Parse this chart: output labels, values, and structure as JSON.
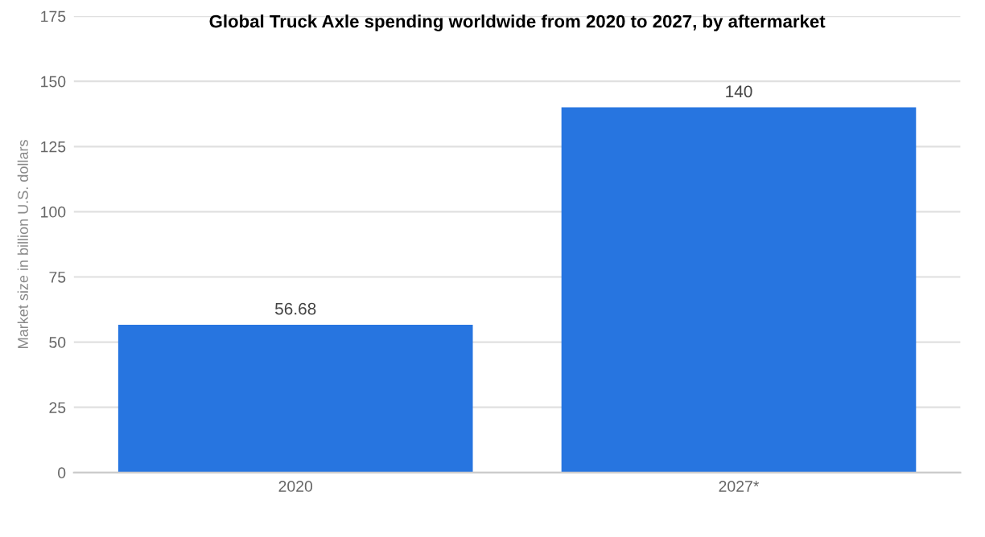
{
  "chart_data": {
    "type": "bar",
    "title": "Global Truck Axle spending worldwide from 2020 to 2027, by aftermarket",
    "ylabel": "Market size in billion U.S. dollars",
    "categories": [
      "2020",
      "2027*"
    ],
    "values": [
      56.68,
      140
    ],
    "color": "#2775e0",
    "ylim": [
      0,
      175
    ],
    "yticks": [
      0,
      25,
      50,
      75,
      100,
      125,
      150,
      175
    ],
    "grid": "y",
    "data_labels": true
  }
}
